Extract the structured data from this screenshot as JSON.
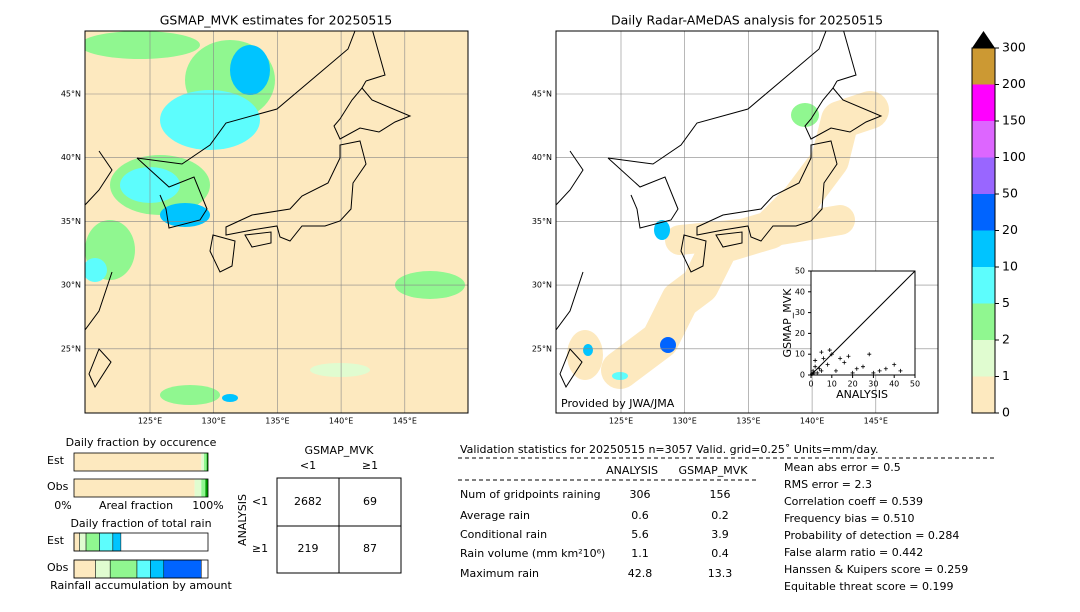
{
  "left_map": {
    "title": "GSMAP_MVK estimates for 20250515",
    "lat_labels": [
      "45°N",
      "40°N",
      "35°N",
      "30°N",
      "25°N"
    ],
    "lon_labels": [
      "125°E",
      "130°E",
      "135°E",
      "140°E",
      "145°E"
    ]
  },
  "right_map": {
    "title": "Daily Radar-AMeDAS analysis for 20250515",
    "credit": "Provided by JWA/JMA",
    "lat_labels": [
      "45°N",
      "40°N",
      "35°N",
      "30°N",
      "25°N"
    ],
    "lon_labels": [
      "125°E",
      "130°E",
      "135°E",
      "140°E",
      "145°E"
    ]
  },
  "colorbar": {
    "ticks": [
      0,
      1,
      2,
      5,
      10,
      20,
      50,
      100,
      150,
      200,
      300
    ],
    "colors": [
      "#fde9bf",
      "#e0fcd0",
      "#90f790",
      "#5dfdfd",
      "#00c4ff",
      "#0064ff",
      "#9966ff",
      "#dd66ff",
      "#ff00ff",
      "#cc9933"
    ]
  },
  "scatter": {
    "type": "scatter",
    "xlabel": "ANALYSIS",
    "ylabel": "GSMAP_MVK",
    "xlim": [
      0,
      50
    ],
    "ylim": [
      0,
      50
    ],
    "xticks": [
      0,
      10,
      20,
      30,
      40,
      50
    ],
    "yticks": [
      0,
      10,
      20,
      30,
      40,
      50
    ],
    "x": [
      0.5,
      1,
      1.5,
      2,
      3,
      4,
      5,
      6,
      8,
      10,
      12,
      14,
      16,
      18,
      20,
      22,
      25,
      28,
      30,
      33,
      36,
      40,
      43,
      2,
      5,
      9
    ],
    "y": [
      0.5,
      2,
      1,
      4,
      1,
      3,
      2,
      8,
      5,
      10,
      2,
      8,
      6,
      9,
      1,
      3,
      4,
      10,
      1,
      2,
      3,
      5,
      2,
      7,
      11,
      12
    ]
  },
  "occurrence": {
    "title": "Daily fraction by occurence",
    "rows": [
      "Est",
      "Obs"
    ],
    "axis_left": "0%",
    "axis_mid": "Areal fraction",
    "axis_right": "100%",
    "segments": [
      [
        0.95,
        0.02,
        0.02,
        0.01
      ],
      [
        0.9,
        0.05,
        0.03,
        0.02
      ]
    ],
    "colors": [
      "#fde9bf",
      "#e0fcd0",
      "#90f790",
      "#00a000"
    ]
  },
  "rain_fraction": {
    "title": "Daily fraction of total rain",
    "rows": [
      "Est",
      "Obs"
    ],
    "footer": "Rainfall accumulation by amount",
    "segments": [
      [
        0.04,
        0.05,
        0.1,
        0.1,
        0.06
      ],
      [
        0.16,
        0.11,
        0.2,
        0.1,
        0.1,
        0.28
      ]
    ],
    "colors": [
      "#fde9bf",
      "#e0fcd0",
      "#90f790",
      "#5dfdfd",
      "#00c4ff",
      "#0064ff"
    ]
  },
  "contingency": {
    "col_title": "GSMAP_MVK",
    "row_title": "ANALYSIS",
    "cols": [
      "<1",
      "≥1"
    ],
    "rows": [
      "<1",
      "≥1"
    ],
    "cells": [
      [
        2682,
        69
      ],
      [
        219,
        87
      ]
    ]
  },
  "stats": {
    "header": "Validation statistics for 20250515  n=3057 Valid. grid=0.25˚ Units=mm/day.",
    "columns": [
      "ANALYSIS",
      "GSMAP_MVK"
    ],
    "rows": [
      {
        "label": "Num of gridpoints raining",
        "values": [
          306,
          156
        ]
      },
      {
        "label": "Average rain",
        "values": [
          0.6,
          0.2
        ]
      },
      {
        "label": "Conditional rain",
        "values": [
          5.6,
          3.9
        ]
      },
      {
        "label": "Rain volume (mm km²10⁶)",
        "values": [
          1.1,
          0.4
        ]
      },
      {
        "label": "Maximum rain",
        "values": [
          42.8,
          13.3
        ]
      }
    ],
    "scores": [
      "Mean abs error =    0.5",
      "RMS error =    2.3",
      "Correlation coeff =  0.539",
      "Frequency bias =  0.510",
      "Probability of detection =  0.284",
      "False alarm ratio =  0.442",
      "Hanssen & Kuipers score =  0.259",
      "Equitable threat score =  0.199"
    ]
  }
}
